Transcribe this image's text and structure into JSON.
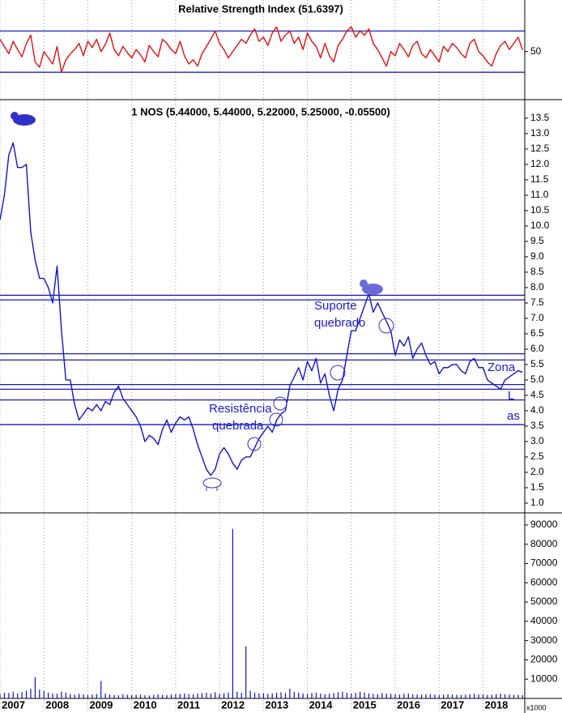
{
  "chart_data": [
    {
      "type": "line",
      "title": "Relative Strength Index (51.6397)",
      "color": "#e01010",
      "hline_color": "#2020c0",
      "xlim": [
        2007.0,
        2018.95
      ],
      "ylim": [
        5,
        98.5
      ],
      "yticks": [
        50
      ],
      "hlines": [
        70,
        30
      ],
      "x": [
        2007.0,
        2007.1,
        2007.2,
        2007.3,
        2007.4,
        2007.5,
        2007.6,
        2007.7,
        2007.8,
        2007.9,
        2008.0,
        2008.1,
        2008.2,
        2008.3,
        2008.4,
        2008.5,
        2008.6,
        2008.7,
        2008.8,
        2008.9,
        2009.0,
        2009.1,
        2009.2,
        2009.3,
        2009.4,
        2009.5,
        2009.6,
        2009.7,
        2009.8,
        2009.9,
        2010.0,
        2010.1,
        2010.2,
        2010.3,
        2010.4,
        2010.5,
        2010.6,
        2010.7,
        2010.8,
        2010.9,
        2011.0,
        2011.1,
        2011.2,
        2011.3,
        2011.4,
        2011.5,
        2011.6,
        2011.7,
        2011.8,
        2011.9,
        2012.0,
        2012.1,
        2012.2,
        2012.3,
        2012.4,
        2012.5,
        2012.6,
        2012.7,
        2012.8,
        2012.9,
        2013.0,
        2013.1,
        2013.2,
        2013.3,
        2013.4,
        2013.5,
        2013.6,
        2013.7,
        2013.8,
        2013.9,
        2014.0,
        2014.1,
        2014.2,
        2014.3,
        2014.4,
        2014.5,
        2014.6,
        2014.7,
        2014.8,
        2014.9,
        2015.0,
        2015.1,
        2015.2,
        2015.3,
        2015.4,
        2015.5,
        2015.6,
        2015.7,
        2015.8,
        2015.9,
        2016.0,
        2016.1,
        2016.2,
        2016.3,
        2016.4,
        2016.5,
        2016.6,
        2016.7,
        2016.8,
        2016.9,
        2017.0,
        2017.1,
        2017.2,
        2017.3,
        2017.4,
        2017.5,
        2017.6,
        2017.7,
        2017.8,
        2017.9,
        2018.0,
        2018.1,
        2018.2,
        2018.3,
        2018.4,
        2018.5,
        2018.6,
        2018.7,
        2018.8,
        2018.9
      ],
      "values": [
        62,
        55,
        48,
        60,
        52,
        45,
        58,
        66,
        40,
        35,
        50,
        44,
        38,
        55,
        30,
        42,
        48,
        52,
        58,
        46,
        60,
        54,
        62,
        50,
        57,
        68,
        52,
        46,
        55,
        49,
        44,
        52,
        47,
        40,
        56,
        50,
        45,
        62,
        58,
        52,
        48,
        60,
        46,
        38,
        42,
        36,
        48,
        55,
        62,
        70,
        58,
        52,
        44,
        50,
        56,
        62,
        58,
        66,
        72,
        60,
        64,
        56,
        68,
        74,
        60,
        66,
        70,
        58,
        64,
        52,
        68,
        60,
        55,
        44,
        58,
        46,
        40,
        56,
        62,
        70,
        74,
        64,
        70,
        66,
        72,
        58,
        52,
        44,
        36,
        50,
        46,
        58,
        52,
        45,
        56,
        60,
        48,
        44,
        52,
        46,
        40,
        55,
        50,
        58,
        54,
        48,
        44,
        58,
        62,
        50,
        46,
        40,
        36,
        48,
        56,
        60,
        52,
        58,
        64,
        51.6397
      ]
    },
    {
      "type": "line",
      "title": "1 NOS (5.44000, 5.44000, 5.22000, 5.25000, -0.05500)",
      "color": "#1414c8",
      "hline_color": "#1a1ab8",
      "xlim": [
        2007.0,
        2018.95
      ],
      "ylim": [
        0.71,
        14.05
      ],
      "yticks": [
        {
          "value": 1.0,
          "label": "1.0"
        },
        {
          "value": 1.5,
          "label": "1.5"
        },
        {
          "value": 2.0,
          "label": "2.0"
        },
        {
          "value": 2.5,
          "label": "2.5"
        },
        {
          "value": 3.0,
          "label": "3.0"
        },
        {
          "value": 3.5,
          "label": "3.5"
        },
        {
          "value": 4.0,
          "label": "4.0"
        },
        {
          "value": 4.5,
          "label": "4.5"
        },
        {
          "value": 5.0,
          "label": "5.0"
        },
        {
          "value": 5.5,
          "label": "5.5"
        },
        {
          "value": 6.0,
          "label": "6.0"
        },
        {
          "value": 6.5,
          "label": "6.5"
        },
        {
          "value": 7.0,
          "label": "7.0"
        },
        {
          "value": 7.5,
          "label": "7.5"
        },
        {
          "value": 8.0,
          "label": "8.0"
        },
        {
          "value": 8.5,
          "label": "8.5"
        },
        {
          "value": 9.0,
          "label": "9.0"
        },
        {
          "value": 9.5,
          "label": "9.5"
        },
        {
          "value": 10.0,
          "label": "10.0"
        },
        {
          "value": 10.5,
          "label": "10.5"
        },
        {
          "value": 11.0,
          "label": "11.0"
        },
        {
          "value": 11.5,
          "label": "11.5"
        },
        {
          "value": 12.0,
          "label": "12.0"
        },
        {
          "value": 12.5,
          "label": "12.5"
        },
        {
          "value": 13.0,
          "label": "13.0"
        },
        {
          "value": 13.5,
          "label": "13.5"
        }
      ],
      "hlines": [
        7.75,
        7.6,
        5.85,
        5.65,
        4.85,
        4.7,
        4.35,
        3.55
      ],
      "annotations": [
        "Suporte",
        "quebrado",
        "Resistência",
        "quebrada",
        "Zona",
        "L",
        "as"
      ],
      "x": [
        2007.0,
        2007.1,
        2007.2,
        2007.3,
        2007.4,
        2007.5,
        2007.6,
        2007.7,
        2007.8,
        2007.9,
        2008.0,
        2008.1,
        2008.2,
        2008.3,
        2008.4,
        2008.5,
        2008.6,
        2008.7,
        2008.8,
        2008.9,
        2009.0,
        2009.1,
        2009.2,
        2009.3,
        2009.4,
        2009.5,
        2009.6,
        2009.7,
        2009.8,
        2009.9,
        2010.0,
        2010.1,
        2010.2,
        2010.3,
        2010.4,
        2010.5,
        2010.6,
        2010.7,
        2010.8,
        2010.9,
        2011.0,
        2011.1,
        2011.2,
        2011.3,
        2011.4,
        2011.5,
        2011.6,
        2011.7,
        2011.8,
        2011.9,
        2012.0,
        2012.1,
        2012.2,
        2012.3,
        2012.4,
        2012.5,
        2012.6,
        2012.7,
        2012.8,
        2012.9,
        2013.0,
        2013.1,
        2013.2,
        2013.3,
        2013.4,
        2013.5,
        2013.6,
        2013.7,
        2013.8,
        2013.9,
        2014.0,
        2014.1,
        2014.2,
        2014.3,
        2014.4,
        2014.5,
        2014.6,
        2014.7,
        2014.8,
        2014.9,
        2015.0,
        2015.1,
        2015.2,
        2015.3,
        2015.4,
        2015.5,
        2015.6,
        2015.7,
        2015.8,
        2015.9,
        2016.0,
        2016.1,
        2016.2,
        2016.3,
        2016.4,
        2016.5,
        2016.6,
        2016.7,
        2016.8,
        2016.9,
        2017.0,
        2017.1,
        2017.2,
        2017.3,
        2017.4,
        2017.5,
        2017.6,
        2017.7,
        2017.8,
        2017.9,
        2018.0,
        2018.1,
        2018.2,
        2018.3,
        2018.4,
        2018.5,
        2018.6,
        2018.7,
        2018.8,
        2018.9
      ],
      "values": [
        10.2,
        11.0,
        12.3,
        12.7,
        11.9,
        11.9,
        12.0,
        9.8,
        8.9,
        8.3,
        8.3,
        8.0,
        7.5,
        8.7,
        6.6,
        5.0,
        5.0,
        4.2,
        3.7,
        3.9,
        4.1,
        4.0,
        4.2,
        4.0,
        4.3,
        4.2,
        4.6,
        4.8,
        4.4,
        4.2,
        4.0,
        3.8,
        3.5,
        3.0,
        3.2,
        3.1,
        2.9,
        3.4,
        3.7,
        3.3,
        3.6,
        3.8,
        3.7,
        3.8,
        3.4,
        2.9,
        2.5,
        2.1,
        1.9,
        2.1,
        2.6,
        2.8,
        2.6,
        2.3,
        2.1,
        2.4,
        2.5,
        2.5,
        2.8,
        3.1,
        3.3,
        3.5,
        3.3,
        3.7,
        3.9,
        4.0,
        4.8,
        5.1,
        5.4,
        5.0,
        5.6,
        5.3,
        5.7,
        4.9,
        5.2,
        4.5,
        4.0,
        4.7,
        5.0,
        5.8,
        6.6,
        6.6,
        7.0,
        7.4,
        7.8,
        7.2,
        7.5,
        7.2,
        6.9,
        6.6,
        5.8,
        6.3,
        6.1,
        6.4,
        5.7,
        6.0,
        6.2,
        5.8,
        5.5,
        5.6,
        5.2,
        5.4,
        5.4,
        5.5,
        5.5,
        5.3,
        5.2,
        5.6,
        5.7,
        5.4,
        5.4,
        5.0,
        4.9,
        4.8,
        4.7,
        5.0,
        5.1,
        5.2,
        5.3,
        5.25
      ]
    },
    {
      "type": "bar",
      "color": "#1010d0",
      "y_unit": "x1000",
      "xlim": [
        2007.0,
        2018.95
      ],
      "ylim": [
        0,
        95000
      ],
      "yticks": [
        10000,
        20000,
        30000,
        40000,
        50000,
        60000,
        70000,
        80000,
        90000
      ],
      "xticks": [
        2007,
        2008,
        2009,
        2010,
        2011,
        2012,
        2013,
        2014,
        2015,
        2016,
        2017,
        2018
      ],
      "x": [
        2007.0,
        2007.1,
        2007.2,
        2007.3,
        2007.4,
        2007.5,
        2007.6,
        2007.7,
        2007.8,
        2007.9,
        2008.0,
        2008.1,
        2008.2,
        2008.3,
        2008.4,
        2008.5,
        2008.6,
        2008.7,
        2008.8,
        2008.9,
        2009.0,
        2009.1,
        2009.2,
        2009.3,
        2009.4,
        2009.5,
        2009.6,
        2009.7,
        2009.8,
        2009.9,
        2010.0,
        2010.1,
        2010.2,
        2010.3,
        2010.4,
        2010.5,
        2010.6,
        2010.7,
        2010.8,
        2010.9,
        2011.0,
        2011.1,
        2011.2,
        2011.3,
        2011.4,
        2011.5,
        2011.6,
        2011.7,
        2011.8,
        2011.9,
        2012.0,
        2012.1,
        2012.2,
        2012.3,
        2012.4,
        2012.5,
        2012.6,
        2012.7,
        2012.8,
        2012.9,
        2013.0,
        2013.1,
        2013.2,
        2013.3,
        2013.4,
        2013.5,
        2013.6,
        2013.7,
        2013.8,
        2013.9,
        2014.0,
        2014.1,
        2014.2,
        2014.3,
        2014.4,
        2014.5,
        2014.6,
        2014.7,
        2014.8,
        2014.9,
        2015.0,
        2015.1,
        2015.2,
        2015.3,
        2015.4,
        2015.5,
        2015.6,
        2015.7,
        2015.8,
        2015.9,
        2016.0,
        2016.1,
        2016.2,
        2016.3,
        2016.4,
        2016.5,
        2016.6,
        2016.7,
        2016.8,
        2016.9,
        2017.0,
        2017.1,
        2017.2,
        2017.3,
        2017.4,
        2017.5,
        2017.6,
        2017.7,
        2017.8,
        2017.9,
        2018.0,
        2018.1,
        2018.2,
        2018.3,
        2018.4,
        2018.5,
        2018.6,
        2018.7,
        2018.8,
        2018.9
      ],
      "values": [
        2500,
        3000,
        2800,
        3500,
        2600,
        3200,
        4000,
        5000,
        11000,
        4500,
        3800,
        3000,
        2600,
        2400,
        3500,
        3000,
        2200,
        2000,
        2400,
        2100,
        1800,
        2000,
        2300,
        9000,
        2500,
        2000,
        1800,
        1600,
        2200,
        1900,
        1700,
        1800,
        2000,
        1600,
        1500,
        1800,
        2100,
        1900,
        1700,
        2000,
        2200,
        2400,
        2600,
        2300,
        2100,
        2500,
        2800,
        3000,
        2600,
        3200,
        2400,
        2600,
        3000,
        88000,
        3500,
        3000,
        27000,
        4000,
        3000,
        2600,
        2800,
        2400,
        2600,
        3000,
        3200,
        2800,
        5000,
        3400,
        3000,
        2600,
        2400,
        2800,
        3000,
        2600,
        2200,
        2500,
        2800,
        3200,
        3500,
        3000,
        2600,
        2800,
        3400,
        3000,
        2600,
        2400,
        2200,
        2800,
        2500,
        2300,
        2200,
        2000,
        2400,
        2600,
        2200,
        2000,
        1900,
        2100,
        2300,
        2000,
        1800,
        2000,
        2200,
        2100,
        1900,
        1800,
        2000,
        2200,
        2400,
        2100,
        2000,
        1800,
        1900,
        2200,
        2500,
        2100,
        2000,
        1800,
        1900,
        1700
      ]
    }
  ]
}
